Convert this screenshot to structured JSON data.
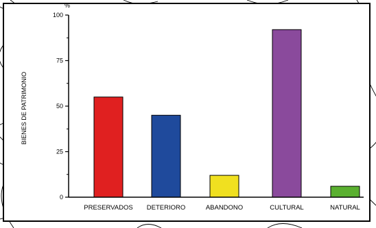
{
  "chart_data": {
    "type": "bar",
    "categories": [
      "PRESERVADOS",
      "DETERIORO",
      "ABANDONO",
      "CULTURAL",
      "NATURAL"
    ],
    "values": [
      55,
      45,
      12,
      92,
      6
    ],
    "colors": [
      "#e02020",
      "#1f4a9c",
      "#f0e020",
      "#8a4a9c",
      "#5ab030"
    ],
    "ylabel": "BIENES DE PATRIMONIO",
    "unit": "%",
    "ylim": [
      0,
      100
    ],
    "yticks": [
      0,
      25,
      50,
      75,
      100
    ],
    "grid": false,
    "legend": "none"
  }
}
